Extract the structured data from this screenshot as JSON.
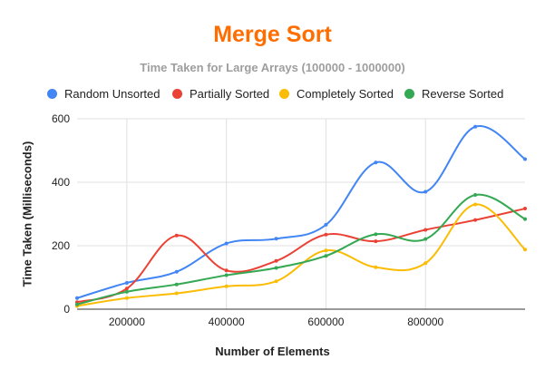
{
  "chart_data": {
    "type": "line",
    "title": "Merge Sort",
    "subtitle": "Time Taken for Large Arrays (100000 - 1000000)",
    "xlabel": "Number of Elements",
    "ylabel": "Time Taken (Milliseconds)",
    "x": [
      100000,
      200000,
      300000,
      400000,
      500000,
      600000,
      700000,
      800000,
      900000,
      1000000
    ],
    "xlim": [
      100000,
      1000000
    ],
    "ylim": [
      0,
      600
    ],
    "x_ticks": [
      200000,
      400000,
      600000,
      800000
    ],
    "x_tick_labels": [
      "200000",
      "400000",
      "600000",
      "800000"
    ],
    "y_ticks": [
      0,
      200,
      400,
      600
    ],
    "y_tick_labels": [
      "0",
      "200",
      "400",
      "600"
    ],
    "grid": true,
    "legend_position": "top",
    "series": [
      {
        "name": "Random Unsorted",
        "color": "#4285f4",
        "values": [
          35,
          83,
          118,
          207,
          222,
          266,
          462,
          370,
          575,
          473
        ]
      },
      {
        "name": "Partially Sorted",
        "color": "#ea4335",
        "values": [
          22,
          65,
          232,
          122,
          152,
          235,
          214,
          250,
          281,
          317
        ]
      },
      {
        "name": "Completely Sorted",
        "color": "#fbbc04",
        "values": [
          10,
          35,
          50,
          72,
          88,
          185,
          132,
          145,
          330,
          188
        ]
      },
      {
        "name": "Reverse Sorted",
        "color": "#34a853",
        "values": [
          15,
          55,
          78,
          107,
          130,
          168,
          236,
          221,
          360,
          284
        ]
      }
    ]
  }
}
